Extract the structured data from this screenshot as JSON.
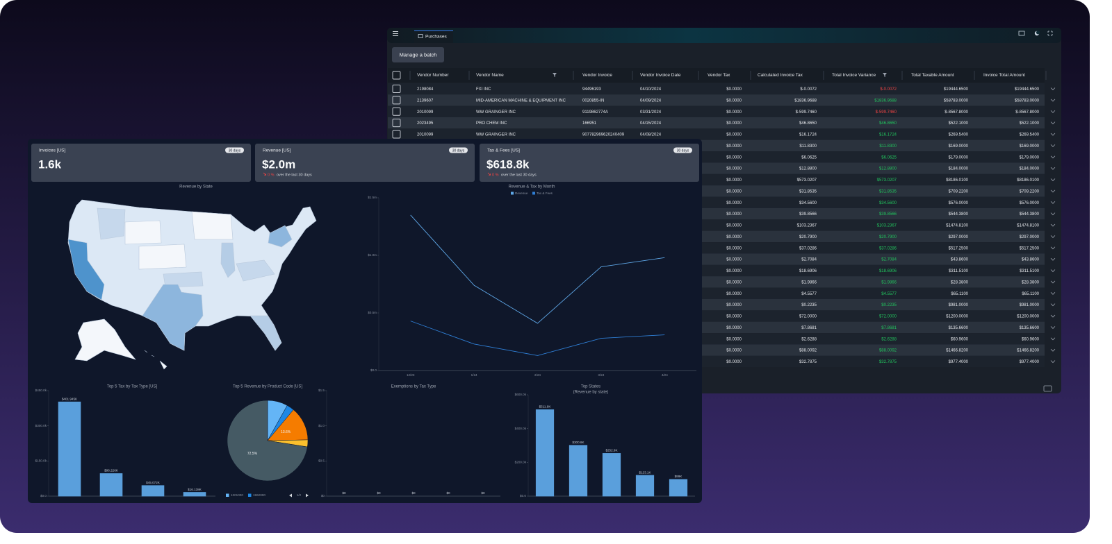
{
  "window": {
    "tab": "Purchases",
    "button": "Manage a batch"
  },
  "table": {
    "columns": [
      "Vendor Number",
      "Vendor Name",
      "Vendor Invoice",
      "Vendor Invoice Date",
      "Vendor Tax",
      "Calculated Invoice Tax",
      "Total Invoice Variance",
      "Total Taxable Amount",
      "Invoice Total Amount"
    ],
    "rows": [
      [
        "2198084",
        "FXI INC",
        "94496193",
        "04/10/2024",
        "$0.0000",
        "$-0.0072",
        "$-0.0072",
        "$19444.6500",
        "$19444.6500"
      ],
      [
        "2139607",
        "MID-AMERICAN MACHINE & EQUIPMENT INC",
        "0020855-IN",
        "04/09/2024",
        "$0.0000",
        "$1836.9688",
        "$1836.9688",
        "$58783.0000",
        "$58783.0000"
      ],
      [
        "2010099",
        "WW GRAINGER INC",
        "9119862774A",
        "03/31/2024",
        "$0.0000",
        "$-599.7460",
        "$-599.7460",
        "$-8567.8000",
        "$-8567.8000"
      ],
      [
        "2023495",
        "PRO CHEM INC",
        "166951",
        "04/15/2024",
        "$0.0000",
        "$46.8650",
        "$46.8650",
        "$522.1000",
        "$522.1000"
      ],
      [
        "2010099",
        "WW GRAINGER INC",
        "907782969620240409",
        "04/08/2024",
        "$0.0000",
        "$16.1724",
        "$16.1724",
        "$269.5400",
        "$269.5400"
      ],
      [
        "$0.0000",
        "$11.8300",
        "$11.8300",
        "$169.0000",
        "$169.0000"
      ],
      [
        "$0.0000",
        "$6.0625",
        "$6.0625",
        "$179.0000",
        "$179.0000"
      ],
      [
        "$0.0000",
        "$12.8800",
        "$12.8800",
        "$184.0000",
        "$184.0000"
      ],
      [
        "$0.0000",
        "$573.0207",
        "$573.0207",
        "$8186.0100",
        "$8186.0100"
      ],
      [
        "$0.0000",
        "$31.8535",
        "$31.8535",
        "$709.2200",
        "$709.2200"
      ],
      [
        "$0.0000",
        "$34.5600",
        "$34.5600",
        "$576.0000",
        "$576.0000"
      ],
      [
        "$0.0000",
        "$39.8566",
        "$39.8566",
        "$544.3800",
        "$544.3800"
      ],
      [
        "$0.0000",
        "$103.2367",
        "$103.2367",
        "$1474.8100",
        "$1474.8100"
      ],
      [
        "$0.0000",
        "$20.7900",
        "$20.7900",
        "$297.0000",
        "$297.0000"
      ],
      [
        "$0.0000",
        "$37.0286",
        "$37.0286",
        "$517.2500",
        "$517.2500"
      ],
      [
        "$0.0000",
        "$2.7084",
        "$2.7084",
        "$43.8600",
        "$43.8600"
      ],
      [
        "$0.0000",
        "$18.6906",
        "$18.6906",
        "$311.5100",
        "$311.5100"
      ],
      [
        "$0.0000",
        "$1.9866",
        "$1.9866",
        "$28.3800",
        "$28.3800"
      ],
      [
        "$0.0000",
        "$4.5577",
        "$4.5577",
        "$65.1100",
        "$65.1100"
      ],
      [
        "$0.0000",
        "$0.2235",
        "$0.2235",
        "$981.0000",
        "$981.0000"
      ],
      [
        "$0.0000",
        "$72.0000",
        "$72.0000",
        "$1200.0000",
        "$1200.0000"
      ],
      [
        "$0.0000",
        "$7.8681",
        "$7.8681",
        "$135.6600",
        "$135.6600"
      ],
      [
        "$0.0000",
        "$2.6288",
        "$2.6288",
        "$60.9600",
        "$60.9600"
      ],
      [
        "$0.0000",
        "$88.0092",
        "$88.0092",
        "$1466.8200",
        "$1466.8200"
      ],
      [
        "$0.0000",
        "$32.7875",
        "$32.7875",
        "$977.4000",
        "$977.4000"
      ]
    ]
  },
  "dashboard": {
    "kpis": [
      {
        "title": "Invoices [US]",
        "badge": "30 days",
        "value": "1.6k"
      },
      {
        "title": "Revenue [US]",
        "badge": "30 days",
        "value": "$2.0m",
        "change": "0 %",
        "note": "over the last 30 days"
      },
      {
        "title": "Tax & Fees [US]",
        "badge": "30 days",
        "value": "$618.8k",
        "change": "0 %",
        "note": "over the last 30 days"
      }
    ],
    "map": {
      "title": "Revenue by State"
    }
  },
  "chart_data": [
    {
      "type": "line",
      "title": "Revenue & Tax by Month",
      "categories": [
        "12/23",
        "1/24",
        "2/24",
        "3/24",
        "4/24"
      ],
      "series": [
        {
          "name": "Revenue",
          "color": "#5fa8e8",
          "values": [
            1350000,
            740000,
            410000,
            900000,
            980000
          ]
        },
        {
          "name": "Tax & Fees",
          "color": "#2f7fd6",
          "values": [
            430000,
            230000,
            130000,
            280000,
            310000
          ]
        }
      ],
      "ylim": [
        0,
        1500000
      ],
      "yticks": [
        {
          "value": 0,
          "label": "$0.0"
        },
        {
          "value": 500000,
          "label": "$0.5m"
        },
        {
          "value": 1000000,
          "label": "$1.0m"
        },
        {
          "value": 1500000,
          "label": "$1.5m"
        }
      ],
      "legend": "top"
    },
    {
      "type": "bar",
      "title": "Top 5 Tax by Tax Type [US]",
      "categories": [
        null,
        null,
        null,
        null
      ],
      "values": [
        401945,
        96226,
        45072,
        16138
      ],
      "value_labels": [
        "$401.945K",
        "$96.226K",
        "$45.072K",
        "$16.138K"
      ],
      "color": "#5a9fdc",
      "ylim": [
        0,
        450000
      ],
      "yticks": [
        {
          "value": 0,
          "label": "$0.0"
        },
        {
          "value": 150000,
          "label": "$150.0k"
        },
        {
          "value": 300000,
          "label": "$300.0k"
        },
        {
          "value": 450000,
          "label": "$450.0k"
        }
      ]
    },
    {
      "type": "pie",
      "title": "Top 5 Revenue by Product Code [US]",
      "categories": [
        "1301000",
        "1962000",
        null,
        null,
        null
      ],
      "values": [
        8.1,
        3.0,
        13.6,
        2.8,
        72.5
      ],
      "value_labels": [
        null,
        null,
        "13.6%",
        null,
        "72.5%"
      ],
      "colors": [
        "#64b5f6",
        "#1e88e5",
        "#f57c00",
        "#fbc02d",
        "#455a64"
      ],
      "legend_page": "1/2"
    },
    {
      "type": "bar",
      "title": "Exemptions by Tax Type",
      "categories": [
        null,
        null,
        null,
        null,
        null
      ],
      "values": [
        0,
        0,
        0,
        0,
        0
      ],
      "value_labels": [
        "$0",
        "$0",
        "$0",
        "$0",
        "$0"
      ],
      "color": "#5a9fdc",
      "ylim": [
        0,
        1.5
      ],
      "yticks": [
        {
          "value": 0,
          "label": "$0"
        },
        {
          "value": 0.5,
          "label": "$0.5"
        },
        {
          "value": 1,
          "label": "$1.0"
        },
        {
          "value": 1.5,
          "label": "$1.5"
        }
      ]
    },
    {
      "type": "bar",
      "title": "Top States",
      "subtitle": "(Revenue by state)",
      "categories": [
        null,
        null,
        null,
        null,
        null
      ],
      "values": [
        511900,
        300800,
        252900,
        123100,
        99000
      ],
      "value_labels": [
        "$511.9K",
        "$300.8K",
        "$252.9K",
        "$123.1K",
        "$99K"
      ],
      "color": "#5a9fdc",
      "ylim": [
        0,
        600000
      ],
      "yticks": [
        {
          "value": 0,
          "label": "$0.0"
        },
        {
          "value": 200000,
          "label": "$200.0k"
        },
        {
          "value": 400000,
          "label": "$400.0k"
        },
        {
          "value": 600000,
          "label": "$600.0k"
        }
      ]
    }
  ]
}
